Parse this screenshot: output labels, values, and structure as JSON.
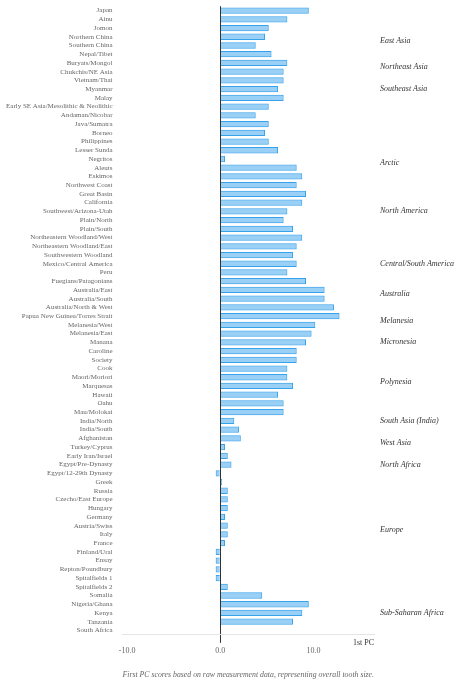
{
  "chart_data": {
    "type": "bar",
    "orientation": "horizontal",
    "xlabel": "First PC scores based on raw measurement data, representing overall tooth size.",
    "categories": [
      "Japan",
      "Ainu",
      "Jomon",
      "Northern China",
      "Southern China",
      "Nepal/Tibet",
      "Buryats/Mongol",
      "Chukchis/NE Asia",
      "Vietnam/Thai",
      "Myanmar",
      "Malay",
      "Early SE Asia/Mesolithic & Neolithic",
      "Andaman/Nicobar",
      "Java/Sumatra",
      "Borneo",
      "Philippines",
      "Lesser Sunda",
      "Negritos",
      "Aleuts",
      "Eskimos",
      "Northwest Coast",
      "Great Basin",
      "California",
      "Southwest/Arizona-Utah",
      "Plain/North",
      "Plain/South",
      "Northeastern Woodland/West",
      "Northeastern Woodland/East",
      "Southwestern Woodland",
      "Mexico/Central America",
      "Peru",
      "Fuegians/Patagonians",
      "Australia/East",
      "Australia/South",
      "Australia/North & West",
      "Papua New Guinea/Torres Strait",
      "Melanesia/West",
      "Melanesia/East",
      "Manana",
      "Caroline",
      "Society",
      "Cook",
      "Maori/Moriori",
      "Marquesas",
      "Hawaii",
      "Oahu",
      "Mau/Molokai",
      "India/North",
      "India/South",
      "Afghanistan",
      "Turkey/Cyprus",
      "Early Iran/Israel",
      "Egypt/Pre-Dynasty",
      "Egypt/12-29th Dynasty",
      "Greek",
      "Russia",
      "Czecho/East Europe",
      "Hungary",
      "Germany",
      "Austria/Swiss",
      "Italy",
      "France",
      "Finland/Ural",
      "Ensay",
      "Repton/Poundbury",
      "Spitalfields 1",
      "Spitalfields 2",
      "Somalia",
      "Nigeria/Ghana",
      "Kenya",
      "Tanzania",
      "South Africa"
    ],
    "values": [
      9.5,
      7.2,
      5.2,
      4.8,
      3.8,
      5.5,
      7.2,
      6.8,
      6.8,
      6.2,
      6.8,
      5.2,
      3.8,
      5.2,
      4.8,
      5.2,
      6.2,
      0.5,
      8.2,
      8.8,
      8.2,
      9.2,
      8.8,
      7.2,
      6.8,
      7.8,
      8.8,
      8.2,
      7.8,
      8.2,
      7.2,
      9.2,
      11.2,
      11.2,
      12.2,
      12.8,
      10.2,
      9.8,
      9.2,
      8.2,
      8.2,
      7.2,
      7.2,
      7.8,
      6.2,
      6.8,
      6.8,
      1.5,
      2.0,
      2.2,
      0.5,
      0.8,
      1.2,
      -0.5,
      0.2,
      0.8,
      0.8,
      0.8,
      0.5,
      0.8,
      0.8,
      0.5,
      -0.5,
      -0.5,
      -0.5,
      -0.5,
      0.8,
      4.5,
      9.5,
      8.8,
      7.8,
      null
    ],
    "xlim": [
      -10.5,
      16.5
    ],
    "xticks": [
      {
        "value": -10.0,
        "label": "-10.0"
      },
      {
        "value": 0.0,
        "label": "0.0"
      },
      {
        "value": 10.0,
        "label": "10.0"
      }
    ],
    "grid": false,
    "annotations": [
      {
        "text": "East Asia",
        "from": "Japan",
        "to": "Chukchis/NE Asia"
      },
      {
        "text": "Northeast Asia",
        "from": "Buryats/Mongol",
        "to": "Chukchis/NE Asia"
      },
      {
        "text": "Southeast Asia",
        "from": "Vietnam/Thai",
        "to": "Malay"
      },
      {
        "text": "Arctic",
        "from": "Negritos",
        "to": "Aleuts"
      },
      {
        "text": "North America",
        "from": "Eskimos",
        "to": "Northeastern Woodland/East"
      },
      {
        "text": "Central/South America",
        "from": "Southwestern Woodland",
        "to": "Peru"
      },
      {
        "text": "Australia",
        "from": "Fuegians/Patagonians",
        "to": "Australia/North & West"
      },
      {
        "text": "Melanesia",
        "from": "Papua New Guinea/Torres Strait",
        "to": "Melanesia/West"
      },
      {
        "text": "Micronesia",
        "from": "Melanesia/East",
        "to": "Caroline"
      },
      {
        "text": "Polynesia",
        "from": "Society",
        "to": "Oahu"
      },
      {
        "text": "South Asia (India)",
        "from": "Mau/Molokai",
        "to": "India/South"
      },
      {
        "text": "West Asia",
        "from": "Afghanistan",
        "to": "Turkey/Cyprus"
      },
      {
        "text": "North Africa",
        "from": "Early Iran/Israel",
        "to": "Egypt/12-29th Dynasty"
      },
      {
        "text": "Europe",
        "from": "Greek",
        "to": "Spitalfields 1"
      },
      {
        "text": "Sub-Saharan Africa",
        "from": "Somalia",
        "to": "South Africa"
      },
      {
        "text": "1st PC",
        "anchor": "x_axis_right"
      }
    ]
  }
}
